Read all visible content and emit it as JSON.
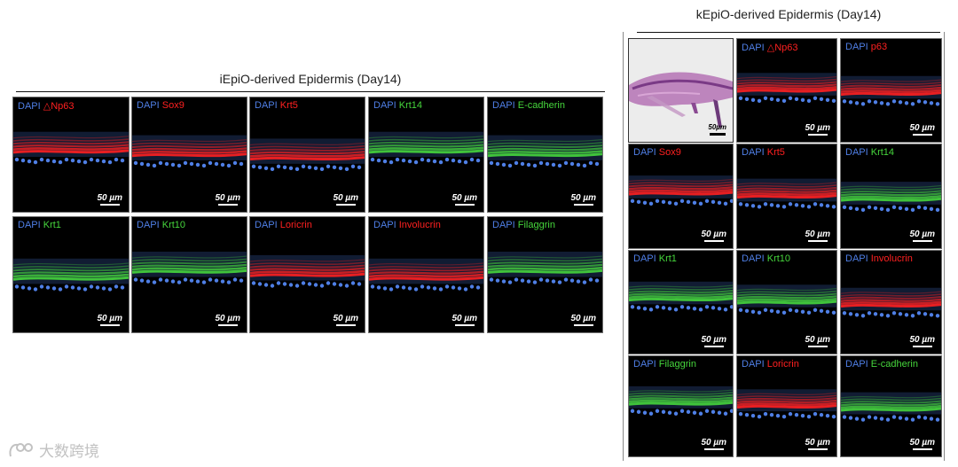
{
  "left_group": {
    "title": "iEpiO-derived Epidermis (Day14)",
    "panels": [
      {
        "dapi": "DAPI",
        "marker": "△Np63",
        "marker_color": "red",
        "scale": "50 µm"
      },
      {
        "dapi": "DAPI",
        "marker": "Sox9",
        "marker_color": "red",
        "scale": "50 µm"
      },
      {
        "dapi": "DAPI",
        "marker": "Krt5",
        "marker_color": "red",
        "scale": "50 µm"
      },
      {
        "dapi": "DAPI",
        "marker": "Krt14",
        "marker_color": "green",
        "scale": "50 µm"
      },
      {
        "dapi": "DAPI",
        "marker": "E-cadherin",
        "marker_color": "green",
        "scale": "50 µm"
      },
      {
        "dapi": "DAPI",
        "marker": "Krt1",
        "marker_color": "green",
        "scale": "50 µm"
      },
      {
        "dapi": "DAPI",
        "marker": "Krt10",
        "marker_color": "green",
        "scale": "50 µm"
      },
      {
        "dapi": "DAPI",
        "marker": "Loricrin",
        "marker_color": "red",
        "scale": "50 µm"
      },
      {
        "dapi": "DAPI",
        "marker": "Involucrin",
        "marker_color": "red",
        "scale": "50 µm"
      },
      {
        "dapi": "DAPI",
        "marker": "Filaggrin",
        "marker_color": "green",
        "scale": "50 µm"
      }
    ]
  },
  "right_group": {
    "title": "kEpiO-derived Epidermis (Day14)",
    "he_panel": {
      "scale": "50µm"
    },
    "panels": [
      {
        "dapi": "DAPI",
        "marker": "△Np63",
        "marker_color": "red",
        "scale": "50 µm"
      },
      {
        "dapi": "DAPI",
        "marker": "p63",
        "marker_color": "red",
        "scale": "50 µm"
      },
      {
        "dapi": "DAPI",
        "marker": "Sox9",
        "marker_color": "red",
        "scale": "50 µm"
      },
      {
        "dapi": "DAPI",
        "marker": "Krt5",
        "marker_color": "red",
        "scale": "50 µm"
      },
      {
        "dapi": "DAPI",
        "marker": "Krt14",
        "marker_color": "green",
        "scale": "50 µm"
      },
      {
        "dapi": "DAPI",
        "marker": "Krt1",
        "marker_color": "green",
        "scale": "50 µm"
      },
      {
        "dapi": "DAPI",
        "marker": "Krt10",
        "marker_color": "green",
        "scale": "50 µm"
      },
      {
        "dapi": "DAPI",
        "marker": "Involucrin",
        "marker_color": "red",
        "scale": "50 µm"
      },
      {
        "dapi": "DAPI",
        "marker": "Filaggrin",
        "marker_color": "green",
        "scale": "50 µm"
      },
      {
        "dapi": "DAPI",
        "marker": "Loricrin",
        "marker_color": "red",
        "scale": "50 µm"
      },
      {
        "dapi": "DAPI",
        "marker": "E-cadherin",
        "marker_color": "green",
        "scale": "50 µm"
      }
    ]
  },
  "watermark": {
    "text": "大数跨境",
    "icon": "logo-icon"
  },
  "colors": {
    "dapi": "#4f7fe6",
    "red": "#ff2020",
    "green": "#46d63c",
    "background": "#000000"
  }
}
